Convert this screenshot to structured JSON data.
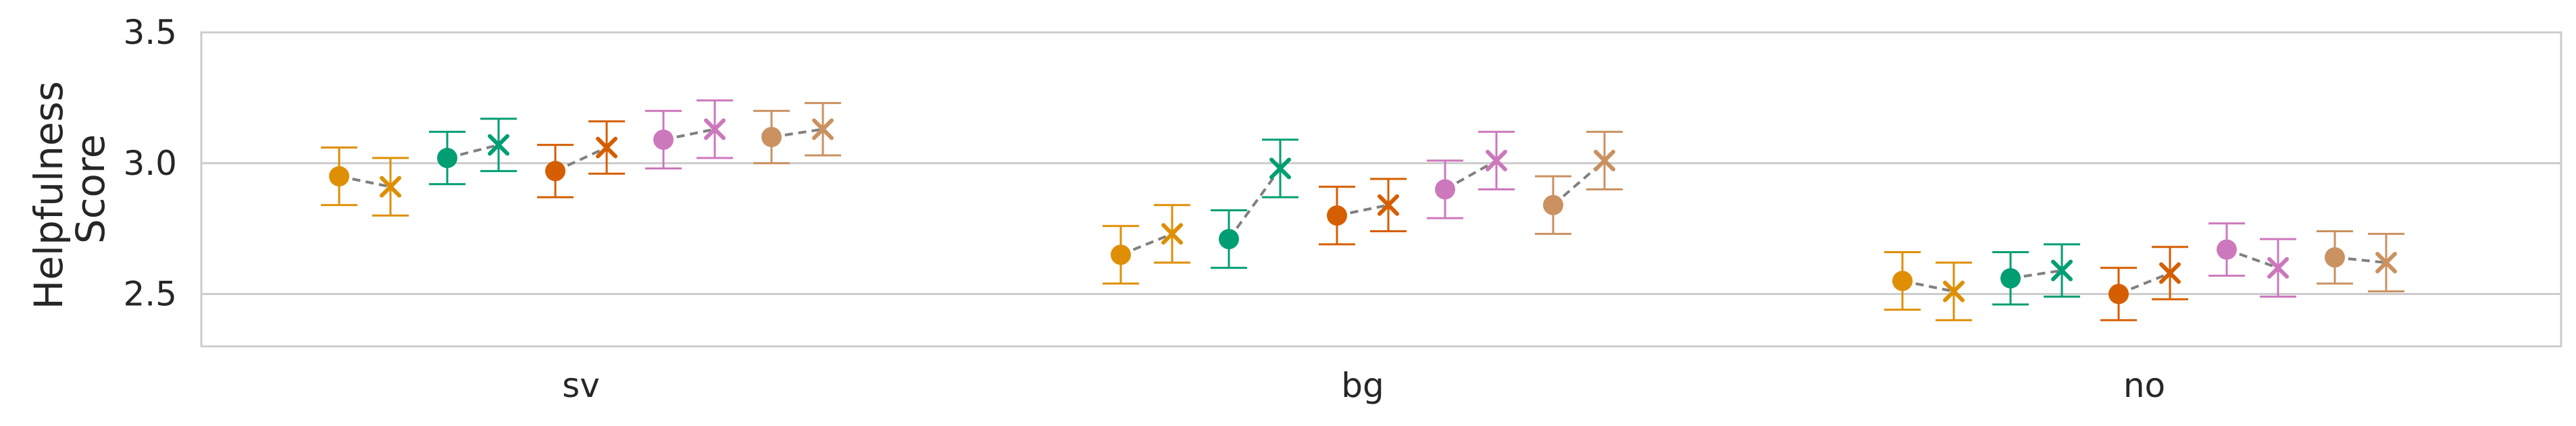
{
  "chart_data": {
    "type": "scatter",
    "title": "",
    "xlabel": "",
    "ylabel_lines": [
      "Helpfulness",
      "Score"
    ],
    "categories": [
      "sv",
      "bg",
      "no"
    ],
    "ylim": [
      2.3,
      3.5
    ],
    "yticks": [
      2.5,
      3.0,
      3.5
    ],
    "ytick_labels": [
      "2.5",
      "3.0",
      "3.5"
    ],
    "grid": "horizontal",
    "legend": "none",
    "marker_pair": {
      "first": "circle",
      "second": "x",
      "connector": "dashed"
    },
    "series": [
      {
        "color": "#de8f05",
        "values": [
          [
            2.95,
            2.91
          ],
          [
            2.65,
            2.73
          ],
          [
            2.55,
            2.51
          ]
        ],
        "errors": [
          [
            0.11,
            0.11
          ],
          [
            0.11,
            0.11
          ],
          [
            0.11,
            0.11
          ]
        ]
      },
      {
        "color": "#029e73",
        "values": [
          [
            3.02,
            3.07
          ],
          [
            2.71,
            2.98
          ],
          [
            2.56,
            2.59
          ]
        ],
        "errors": [
          [
            0.1,
            0.1
          ],
          [
            0.11,
            0.11
          ],
          [
            0.1,
            0.1
          ]
        ]
      },
      {
        "color": "#d55e00",
        "values": [
          [
            2.97,
            3.06
          ],
          [
            2.8,
            2.84
          ],
          [
            2.5,
            2.58
          ]
        ],
        "errors": [
          [
            0.1,
            0.1
          ],
          [
            0.11,
            0.1
          ],
          [
            0.1,
            0.1
          ]
        ]
      },
      {
        "color": "#cc78bc",
        "values": [
          [
            3.09,
            3.13
          ],
          [
            2.9,
            3.01
          ],
          [
            2.67,
            2.6
          ]
        ],
        "errors": [
          [
            0.11,
            0.11
          ],
          [
            0.11,
            0.11
          ],
          [
            0.1,
            0.11
          ]
        ]
      },
      {
        "color": "#ca9161",
        "values": [
          [
            3.1,
            3.13
          ],
          [
            2.84,
            3.01
          ],
          [
            2.64,
            2.62
          ]
        ],
        "errors": [
          [
            0.1,
            0.1
          ],
          [
            0.11,
            0.11
          ],
          [
            0.1,
            0.11
          ]
        ]
      }
    ]
  }
}
